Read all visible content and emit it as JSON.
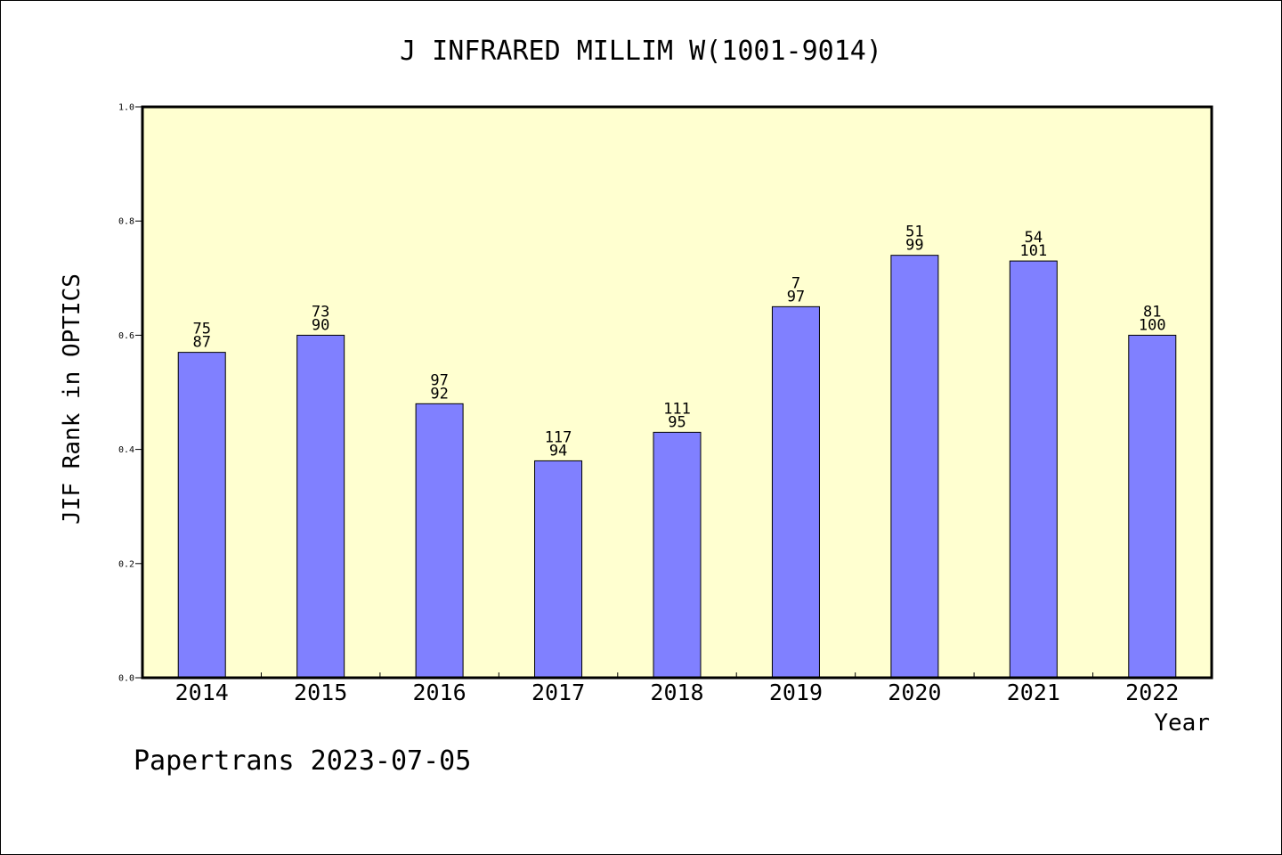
{
  "chart_data": {
    "type": "bar",
    "title": "J INFRARED MILLIM W(1001-9014)",
    "xlabel": "Year",
    "ylabel": "JIF Rank in OPTICS",
    "ylim": [
      0,
      1.0
    ],
    "yticks": [
      "0.0",
      "0.2",
      "0.4",
      "0.6",
      "0.8",
      "1.0"
    ],
    "categories": [
      "2014",
      "2015",
      "2016",
      "2017",
      "2018",
      "2019",
      "2020",
      "2021",
      "2022"
    ],
    "values": [
      0.57,
      0.6,
      0.48,
      0.38,
      0.43,
      0.65,
      0.74,
      0.73,
      0.6
    ],
    "rank": [
      "75",
      "73",
      "97",
      "117",
      "111",
      "7",
      "51",
      "54",
      "81"
    ],
    "total": [
      "87",
      "90",
      "92",
      "94",
      "95",
      "97",
      "99",
      "101",
      "100"
    ],
    "grid": false,
    "plot_background": "#ffffd0",
    "bar_color": "#8080ff"
  },
  "footer": "Papertrans 2023-07-05"
}
